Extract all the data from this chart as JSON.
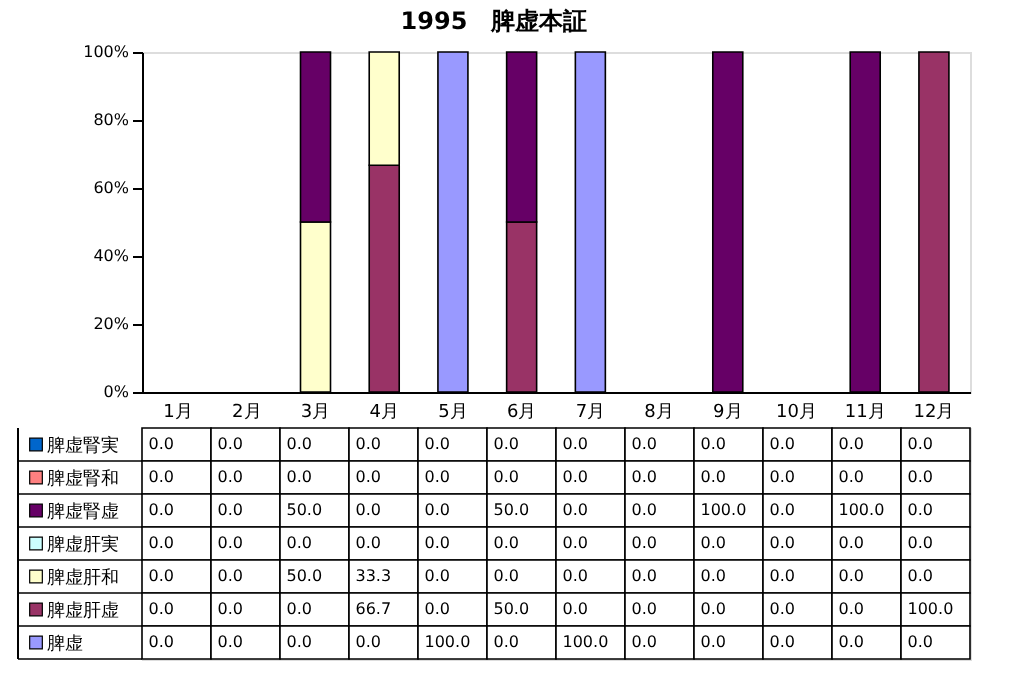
{
  "chart_data": {
    "type": "bar",
    "title": "1995　脾虚本証",
    "stacked": true,
    "legend": "bottom",
    "categories": [
      "1月",
      "2月",
      "3月",
      "4月",
      "5月",
      "6月",
      "7月",
      "8月",
      "9月",
      "10月",
      "11月",
      "12月"
    ],
    "ylim": [
      0,
      100
    ],
    "yticks": [
      {
        "value": 0,
        "label": "0%"
      },
      {
        "value": 20,
        "label": "20%"
      },
      {
        "value": 40,
        "label": "40%"
      },
      {
        "value": 60,
        "label": "60%"
      },
      {
        "value": 80,
        "label": "80%"
      },
      {
        "value": 100,
        "label": "100%"
      }
    ],
    "series": [
      {
        "name": "脾虚",
        "color": "#9999ff",
        "values": [
          0,
          0,
          0,
          0,
          100,
          0,
          100,
          0,
          0,
          0,
          0,
          0
        ],
        "value_labels": [
          "0.0",
          "0.0",
          "0.0",
          "0.0",
          "100.0",
          "0.0",
          "100.0",
          "0.0",
          "0.0",
          "0.0",
          "0.0",
          "0.0"
        ]
      },
      {
        "name": "脾虚肝虚",
        "color": "#993366",
        "values": [
          0,
          0,
          0,
          66.7,
          0,
          50,
          0,
          0,
          0,
          0,
          0,
          100
        ],
        "value_labels": [
          "0.0",
          "0.0",
          "0.0",
          "66.7",
          "0.0",
          "50.0",
          "0.0",
          "0.0",
          "0.0",
          "0.0",
          "0.0",
          "100.0"
        ]
      },
      {
        "name": "脾虚肝和",
        "color": "#ffffcc",
        "values": [
          0,
          0,
          50,
          33.3,
          0,
          0,
          0,
          0,
          0,
          0,
          0,
          0
        ],
        "value_labels": [
          "0.0",
          "0.0",
          "50.0",
          "33.3",
          "0.0",
          "0.0",
          "0.0",
          "0.0",
          "0.0",
          "0.0",
          "0.0",
          "0.0"
        ]
      },
      {
        "name": "脾虚肝実",
        "color": "#ccffff",
        "values": [
          0,
          0,
          0,
          0,
          0,
          0,
          0,
          0,
          0,
          0,
          0,
          0
        ],
        "value_labels": [
          "0.0",
          "0.0",
          "0.0",
          "0.0",
          "0.0",
          "0.0",
          "0.0",
          "0.0",
          "0.0",
          "0.0",
          "0.0",
          "0.0"
        ]
      },
      {
        "name": "脾虚腎虚",
        "color": "#660066",
        "values": [
          0,
          0,
          50,
          0,
          0,
          50,
          0,
          0,
          100,
          0,
          100,
          0
        ],
        "value_labels": [
          "0.0",
          "0.0",
          "50.0",
          "0.0",
          "0.0",
          "50.0",
          "0.0",
          "0.0",
          "100.0",
          "0.0",
          "100.0",
          "0.0"
        ]
      },
      {
        "name": "脾虚腎和",
        "color": "#ff8080",
        "values": [
          0,
          0,
          0,
          0,
          0,
          0,
          0,
          0,
          0,
          0,
          0,
          0
        ],
        "value_labels": [
          "0.0",
          "0.0",
          "0.0",
          "0.0",
          "0.0",
          "0.0",
          "0.0",
          "0.0",
          "0.0",
          "0.0",
          "0.0",
          "0.0"
        ]
      },
      {
        "name": "脾虚腎実",
        "color": "#0066cc",
        "values": [
          0,
          0,
          0,
          0,
          0,
          0,
          0,
          0,
          0,
          0,
          0,
          0
        ],
        "value_labels": [
          "0.0",
          "0.0",
          "0.0",
          "0.0",
          "0.0",
          "0.0",
          "0.0",
          "0.0",
          "0.0",
          "0.0",
          "0.0",
          "0.0"
        ]
      }
    ]
  }
}
